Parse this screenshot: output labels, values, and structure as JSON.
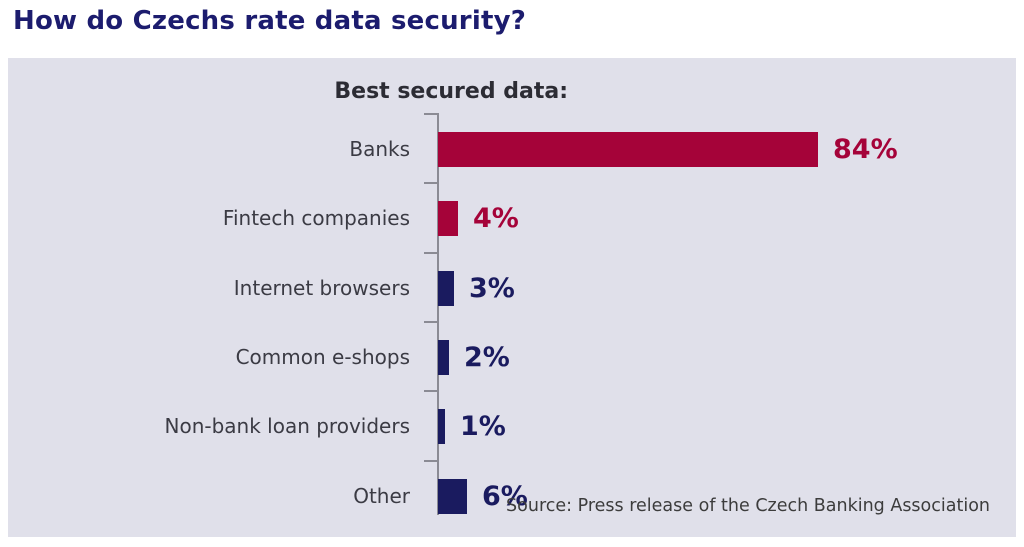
{
  "page": {
    "title": "How do Czechs rate data security?"
  },
  "colors": {
    "title_navy": "#1c1c6e",
    "panel_background": "#e0e0ea",
    "crimson": "#a50339",
    "navy": "#1a1b5f",
    "label_gray": "#3b3b44",
    "axis_gray": "#8b8b94",
    "chart_title_dark": "#2c2c34",
    "source_gray": "#3c3c3c"
  },
  "chart_data": {
    "type": "bar",
    "orientation": "horizontal",
    "title": "Best secured data:",
    "categories": [
      "Banks",
      "Fintech companies",
      "Internet browsers",
      "Common e-shops",
      "Non-bank loan providers",
      "Other"
    ],
    "values": [
      84,
      4,
      3,
      2,
      1,
      6
    ],
    "value_labels": [
      "84%",
      "4%",
      "3%",
      "2%",
      "1%",
      "6%"
    ],
    "bar_colors": [
      "#a50339",
      "#a50339",
      "#1a1b5f",
      "#1a1b5f",
      "#1a1b5f",
      "#1a1b5f"
    ],
    "xlabel": "",
    "ylabel": "",
    "xlim": [
      0,
      100
    ],
    "grid": false,
    "legend": false,
    "source": "Source: Press release of the Czech Banking Association"
  }
}
